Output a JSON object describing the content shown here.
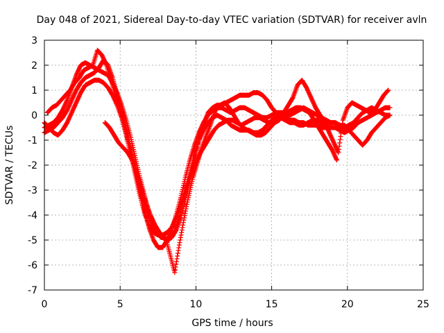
{
  "chart_data": {
    "type": "scatter",
    "title": "Day 048 of 2021, Sidereal Day-to-day VTEC variation (SDTVAR) for receiver avln",
    "xlabel": "GPS time / hours",
    "ylabel": "SDTVAR / TECUs",
    "xlim": [
      0,
      25
    ],
    "ylim": [
      -7,
      3
    ],
    "xticks": [
      "0",
      "5",
      "10",
      "15",
      "20",
      "25"
    ],
    "yticks": [
      "3",
      "2",
      "1",
      "0",
      "-1",
      "-2",
      "-3",
      "-4",
      "-5",
      "-6",
      "-7"
    ],
    "grid": true,
    "marker": "+",
    "color": "#ff0000",
    "series": [
      {
        "x": [
          0.0,
          0.3,
          0.6,
          0.9,
          1.2,
          1.5,
          1.8,
          2.1,
          2.4,
          2.7,
          3.0,
          3.3,
          3.6,
          3.9,
          4.2,
          4.5,
          4.8,
          5.1,
          5.4,
          5.7,
          6.0,
          6.3,
          6.6,
          6.9,
          7.2,
          7.5,
          7.8,
          8.1,
          8.4,
          8.7,
          9.0,
          9.3,
          9.6,
          9.9,
          10.2,
          10.5,
          10.8,
          11.1,
          11.4,
          11.7,
          12.0,
          12.3,
          12.6,
          12.9,
          13.2,
          13.5,
          13.8,
          14.1,
          14.4,
          14.7,
          15.0,
          15.3,
          15.6,
          15.9,
          16.2,
          16.5,
          16.8,
          17.1,
          17.4,
          17.7,
          18.0,
          18.3,
          18.6,
          18.9,
          19.2,
          19.5,
          19.8,
          20.1,
          20.4,
          20.7,
          21.0,
          21.3,
          21.6,
          21.9,
          22.2,
          22.5,
          22.8
        ],
        "y": [
          -0.5,
          -0.4,
          -0.3,
          -0.1,
          0.2,
          0.6,
          1.1,
          1.6,
          2.0,
          2.1,
          2.0,
          1.9,
          1.8,
          1.7,
          1.6,
          1.3,
          0.9,
          0.4,
          -0.2,
          -0.9,
          -1.7,
          -2.5,
          -3.2,
          -3.9,
          -4.4,
          -4.7,
          -4.9,
          -5.0,
          -4.9,
          -4.6,
          -4.1,
          -3.4,
          -2.6,
          -1.8,
          -1.0,
          -0.4,
          0.1,
          0.3,
          0.4,
          0.4,
          0.5,
          0.6,
          0.7,
          0.8,
          0.8,
          0.8,
          0.9,
          0.9,
          0.8,
          0.6,
          0.3,
          0.1,
          0.0,
          -0.1,
          -0.2,
          -0.2,
          -0.3,
          -0.3,
          -0.4,
          -0.4,
          -0.4,
          -0.5,
          -0.5,
          -0.5,
          -0.5,
          -0.6,
          -0.7,
          -0.6,
          -0.5,
          -0.3,
          -0.2,
          -0.1,
          0.0,
          0.1,
          0.2,
          0.3,
          0.3
        ]
      },
      {
        "x": [
          0.0,
          0.3,
          0.6,
          0.9,
          1.2,
          1.5,
          1.8,
          2.1,
          2.4,
          2.7,
          3.0,
          3.3,
          3.6,
          3.9,
          4.2,
          4.5,
          4.8,
          5.1,
          5.4,
          5.7,
          6.0,
          6.3,
          6.6,
          6.9,
          7.2,
          7.5,
          7.8,
          8.1,
          8.4,
          8.7,
          9.0,
          9.3,
          9.6,
          9.9,
          10.2,
          10.5,
          10.8,
          11.1,
          11.4,
          11.7,
          12.0,
          12.3,
          12.6,
          12.9,
          13.2,
          13.5,
          13.8,
          14.1,
          14.4,
          14.7,
          15.0,
          15.3,
          15.6,
          15.9,
          16.2,
          16.5,
          16.8,
          17.1,
          17.4,
          17.7,
          18.0,
          18.3,
          18.6,
          18.9,
          19.2,
          19.5,
          19.8,
          20.1,
          20.4,
          20.7,
          21.0,
          21.3,
          21.6,
          21.9,
          22.2,
          22.5,
          22.8
        ],
        "y": [
          -0.7,
          -0.6,
          -0.5,
          -0.3,
          -0.1,
          0.2,
          0.6,
          1.0,
          1.3,
          1.5,
          1.6,
          1.7,
          1.9,
          2.2,
          2.0,
          1.5,
          0.8,
          0.2,
          -0.5,
          -1.3,
          -2.2,
          -3.0,
          -3.8,
          -4.5,
          -5.0,
          -5.3,
          -5.3,
          -5.0,
          -4.6,
          -4.0,
          -3.3,
          -2.5,
          -1.8,
          -1.2,
          -0.7,
          -0.3,
          0.0,
          0.2,
          0.3,
          0.3,
          0.2,
          0.1,
          0.2,
          0.3,
          0.3,
          0.2,
          0.1,
          0.0,
          -0.1,
          -0.1,
          0.0,
          0.1,
          0.1,
          0.1,
          0.0,
          0.1,
          0.2,
          0.3,
          0.2,
          0.1,
          0.0,
          -0.1,
          -0.2,
          -0.3,
          -0.3,
          -0.4,
          -0.5,
          -0.4,
          -0.3,
          -0.1,
          0.1,
          0.2,
          0.3,
          0.2,
          0.1,
          0.0,
          0.0
        ]
      },
      {
        "x": [
          0.0,
          0.3,
          0.6,
          0.9,
          1.2,
          1.5,
          1.8,
          2.1,
          2.4,
          2.7,
          3.0,
          3.3,
          3.6,
          3.9,
          4.2,
          4.5,
          4.8,
          5.1,
          5.4,
          5.7,
          6.0,
          6.3,
          6.6,
          6.9,
          7.2,
          7.5,
          7.8,
          8.1,
          8.4,
          8.7,
          9.0,
          9.3,
          9.6,
          9.9,
          10.2,
          10.5,
          10.8,
          11.1,
          11.4,
          11.7,
          12.0,
          12.3,
          12.6,
          12.9,
          13.2,
          13.5,
          13.8,
          14.1,
          14.4,
          14.7,
          15.0,
          15.3,
          15.6,
          15.9,
          16.2,
          16.5,
          16.8,
          17.1,
          17.4,
          17.7,
          18.0,
          18.3,
          18.6,
          18.9,
          19.2,
          19.5,
          19.8,
          20.1,
          20.4,
          20.7,
          21.0,
          21.3,
          21.6,
          21.9,
          22.2,
          22.5,
          22.8
        ],
        "y": [
          -0.3,
          -0.5,
          -0.7,
          -0.8,
          -0.6,
          -0.3,
          0.1,
          0.5,
          0.9,
          1.2,
          1.3,
          1.4,
          1.4,
          1.3,
          1.1,
          0.8,
          0.4,
          -0.1,
          -0.8,
          -1.6,
          -2.4,
          -3.2,
          -3.9,
          -4.4,
          -4.7,
          -4.8,
          -4.8,
          -4.7,
          -4.5,
          -4.1,
          -3.6,
          -3.0,
          -2.3,
          -1.6,
          -1.0,
          -0.6,
          -0.3,
          -0.1,
          0.0,
          -0.1,
          -0.2,
          -0.4,
          -0.5,
          -0.6,
          -0.6,
          -0.6,
          -0.7,
          -0.7,
          -0.6,
          -0.4,
          -0.2,
          -0.1,
          -0.1,
          -0.2,
          -0.3,
          -0.3,
          -0.4,
          -0.4,
          -0.3,
          -0.2,
          -0.2,
          -0.3,
          -0.4,
          -0.5,
          -0.5,
          -0.5,
          -0.4,
          -0.6,
          -0.8,
          -1.0,
          -1.2,
          -1.0,
          -0.7,
          -0.5,
          -0.3,
          -0.1,
          0.0
        ]
      },
      {
        "x": [
          0.2,
          0.5,
          0.8,
          1.1,
          1.4,
          1.7,
          2.0,
          2.3,
          2.6,
          2.9,
          3.2,
          3.5,
          3.8,
          4.1,
          4.4,
          4.7,
          5.0,
          5.3,
          5.6,
          5.9,
          6.2,
          6.5,
          6.8,
          7.1,
          7.4,
          7.7,
          8.0,
          8.3,
          8.6,
          8.9,
          9.2,
          9.5,
          9.8,
          10.1,
          10.4,
          10.7,
          11.0,
          11.3,
          11.6,
          11.9,
          12.2,
          12.5,
          12.8,
          13.1,
          13.4,
          13.7,
          14.0,
          14.3,
          14.6,
          14.9,
          15.2,
          15.5,
          15.8,
          16.1,
          16.4,
          16.7,
          17.0,
          17.3,
          17.6,
          17.9,
          18.2,
          18.5,
          18.8,
          19.1,
          19.4,
          19.7,
          20.0,
          20.3,
          20.6,
          20.9,
          21.2,
          21.5,
          21.8,
          22.1,
          22.4,
          22.7
        ],
        "y": [
          0.1,
          0.3,
          0.4,
          0.6,
          0.8,
          1.0,
          1.3,
          1.5,
          1.8,
          1.9,
          2.0,
          2.6,
          2.4,
          2.0,
          1.4,
          0.8,
          0.2,
          -0.5,
          -1.2,
          -1.9,
          -2.6,
          -3.3,
          -3.9,
          -4.4,
          -4.7,
          -4.9,
          -4.9,
          -5.6,
          -6.3,
          -5.2,
          -4.2,
          -3.3,
          -2.5,
          -1.9,
          -1.3,
          -0.8,
          -0.3,
          0.2,
          0.4,
          0.5,
          0.3,
          0.0,
          -0.3,
          -0.5,
          -0.6,
          -0.7,
          -0.8,
          -0.8,
          -0.7,
          -0.5,
          -0.3,
          -0.2,
          0.1,
          0.4,
          0.7,
          1.2,
          1.4,
          1.1,
          0.7,
          0.3,
          0.0,
          -0.3,
          -0.7,
          -1.1,
          -1.5,
          -0.2,
          0.3,
          0.5,
          0.4,
          0.3,
          0.2,
          0.1,
          0.2,
          0.5,
          0.8,
          1.0
        ]
      },
      {
        "x": [
          4.0,
          4.3,
          4.6,
          4.9,
          5.2,
          5.5,
          5.8,
          6.1,
          6.4,
          6.7,
          7.0,
          7.3,
          7.6,
          7.9,
          8.2,
          8.5,
          8.8,
          9.1,
          9.4,
          9.7,
          10.0,
          10.3,
          10.6,
          10.9,
          11.2,
          11.5,
          11.8,
          12.1,
          12.4,
          12.7,
          13.0,
          13.3,
          13.6,
          13.9,
          14.2,
          14.5,
          14.8,
          15.1,
          15.4,
          15.7,
          16.0,
          16.3,
          16.6,
          16.9,
          17.2,
          17.5,
          17.8,
          18.1,
          18.4,
          18.7,
          19.0,
          19.3
        ],
        "y": [
          -0.3,
          -0.5,
          -0.8,
          -1.1,
          -1.3,
          -1.5,
          -1.8,
          -2.3,
          -2.9,
          -3.5,
          -4.0,
          -4.4,
          -4.7,
          -4.9,
          -5.0,
          -4.8,
          -4.3,
          -3.6,
          -2.9,
          -2.3,
          -1.9,
          -1.5,
          -1.2,
          -0.9,
          -0.6,
          -0.4,
          -0.3,
          -0.2,
          -0.2,
          -0.3,
          -0.4,
          -0.3,
          -0.2,
          -0.1,
          -0.1,
          -0.2,
          -0.3,
          -0.2,
          -0.1,
          0.0,
          0.1,
          0.2,
          0.3,
          0.3,
          0.2,
          0.1,
          -0.2,
          -0.5,
          -0.8,
          -1.1,
          -1.4,
          -1.8
        ]
      }
    ]
  }
}
